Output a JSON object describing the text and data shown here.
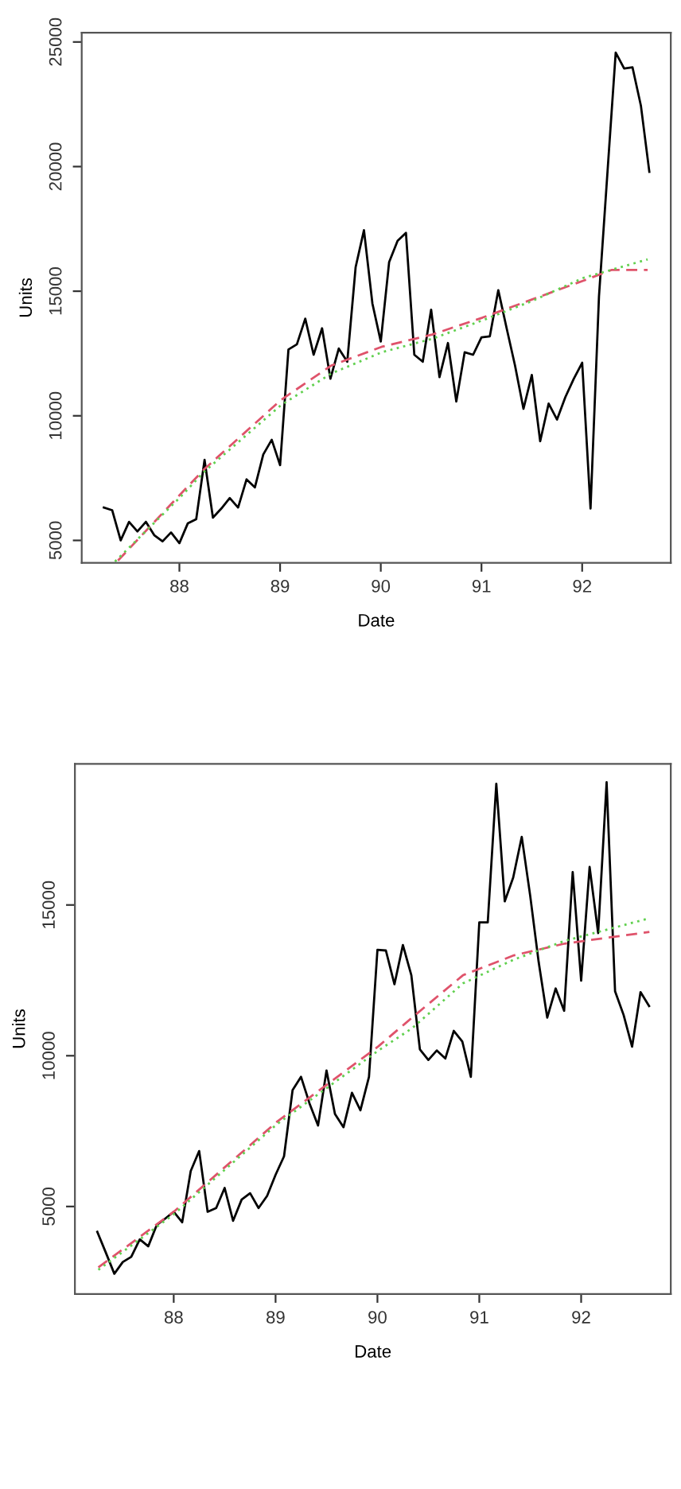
{
  "chart_data": [
    {
      "type": "line",
      "xlabel": "Date",
      "ylabel": "Units",
      "xlim": [
        87.03,
        92.88
      ],
      "ylim": [
        4100,
        25370
      ],
      "xticks": [
        88,
        89,
        90,
        91,
        92
      ],
      "yticks": [
        5000,
        10000,
        15000,
        20000,
        25000
      ],
      "marker": "none",
      "series": [
        {
          "color": "#000000",
          "line_style": "solid",
          "x": [
            87.25,
            87.333,
            87.417,
            87.5,
            87.583,
            87.667,
            87.75,
            87.833,
            87.917,
            88.0,
            88.083,
            88.167,
            88.25,
            88.333,
            88.417,
            88.5,
            88.583,
            88.667,
            88.75,
            88.833,
            88.917,
            89.0,
            89.083,
            89.167,
            89.25,
            89.333,
            89.417,
            89.5,
            89.583,
            89.667,
            89.75,
            89.833,
            89.917,
            90.0,
            90.083,
            90.167,
            90.25,
            90.333,
            90.417,
            90.5,
            90.583,
            90.667,
            90.75,
            90.833,
            90.917,
            91.0,
            91.083,
            91.167,
            91.25,
            91.333,
            91.417,
            91.5,
            91.583,
            91.667,
            91.75,
            91.833,
            91.917,
            92.0,
            92.083,
            92.167,
            92.25,
            92.333,
            92.417,
            92.5,
            92.583,
            92.667
          ],
          "values": [
            6320,
            6210,
            5000,
            5745,
            5360,
            5745,
            5210,
            4960,
            5320,
            4890,
            5680,
            5850,
            8230,
            5915,
            6280,
            6700,
            6320,
            7450,
            7130,
            8450,
            9040,
            8020,
            12660,
            12870,
            13900,
            12450,
            13510,
            11490,
            12700,
            12170,
            15960,
            17450,
            14500,
            12980,
            16170,
            17020,
            17340,
            12450,
            12170,
            14260,
            11550,
            12920,
            10575,
            12550,
            12450,
            13150,
            13190,
            15040,
            13510,
            12020,
            10280,
            11640,
            8980,
            10490,
            9850,
            10750,
            11490,
            12130,
            6280,
            14800,
            19700,
            24575,
            23935,
            23980,
            22450,
            19790
          ]
        },
        {
          "color": "#df536b",
          "line_style": "dashed",
          "x": [
            87.39,
            88.0,
            88.25,
            89.01,
            89.51,
            90.01,
            90.51,
            91.01,
            91.51,
            92.01,
            92.29,
            92.65
          ],
          "values": [
            4190,
            6810,
            7870,
            10640,
            12020,
            12770,
            13260,
            13940,
            14680,
            15420,
            15850,
            15850
          ]
        },
        {
          "color": "#61d04f",
          "line_style": "dotted",
          "x": [
            87.36,
            88.0,
            88.25,
            89.01,
            89.51,
            90.01,
            90.51,
            91.01,
            91.51,
            92.01,
            92.65
          ],
          "values": [
            4150,
            6700,
            7770,
            10430,
            11700,
            12550,
            13090,
            13830,
            14620,
            15530,
            16275
          ]
        }
      ]
    },
    {
      "type": "line",
      "xlabel": "Date",
      "ylabel": "Units",
      "xlim": [
        87.03,
        92.88
      ],
      "ylim": [
        2100,
        19680
      ],
      "xticks": [
        88,
        89,
        90,
        91,
        92
      ],
      "yticks": [
        5000,
        10000,
        15000
      ],
      "marker": "none",
      "series": [
        {
          "color": "#000000",
          "line_style": "solid",
          "x": [
            87.25,
            87.333,
            87.417,
            87.5,
            87.583,
            87.667,
            87.75,
            87.833,
            87.917,
            88.0,
            88.083,
            88.167,
            88.25,
            88.333,
            88.417,
            88.5,
            88.583,
            88.667,
            88.75,
            88.833,
            88.917,
            89.0,
            89.083,
            89.167,
            89.25,
            89.333,
            89.417,
            89.5,
            89.583,
            89.667,
            89.75,
            89.833,
            89.917,
            90.0,
            90.083,
            90.167,
            90.25,
            90.333,
            90.417,
            90.5,
            90.583,
            90.667,
            90.75,
            90.833,
            90.917,
            91.0,
            91.083,
            91.167,
            91.25,
            91.333,
            91.417,
            91.5,
            91.583,
            91.667,
            91.75,
            91.833,
            91.917,
            92.0,
            92.083,
            92.167,
            92.25,
            92.333,
            92.417,
            92.5,
            92.583,
            92.667
          ],
          "values": [
            4160,
            3475,
            2770,
            3160,
            3330,
            3910,
            3680,
            4385,
            4600,
            4825,
            4475,
            6175,
            6840,
            4825,
            4950,
            5615,
            4525,
            5230,
            5440,
            4950,
            5350,
            6050,
            6665,
            8860,
            9300,
            8420,
            7685,
            9510,
            8070,
            7630,
            8770,
            8190,
            9300,
            13510,
            13490,
            12370,
            13670,
            12670,
            10210,
            9860,
            10175,
            9910,
            10825,
            10475,
            9300,
            14420,
            14420,
            19020,
            15120,
            15910,
            17260,
            15300,
            13105,
            11265,
            12230,
            11490,
            16090,
            12490,
            16260,
            14070,
            19070,
            12140,
            11350,
            10300,
            12110,
            11650
          ]
        },
        {
          "color": "#df536b",
          "line_style": "dashed",
          "x": [
            87.26,
            88.0,
            89.01,
            90.01,
            90.34,
            90.84,
            91.34,
            91.84,
            92.67
          ],
          "values": [
            2980,
            4825,
            7800,
            10315,
            11265,
            12670,
            13330,
            13720,
            14105
          ]
        },
        {
          "color": "#61d04f",
          "line_style": "dotted",
          "x": [
            87.26,
            88.0,
            89.01,
            90.01,
            90.34,
            90.84,
            91.34,
            91.84,
            92.67
          ],
          "values": [
            2900,
            4740,
            7720,
            10175,
            10910,
            12400,
            13190,
            13810,
            14560
          ]
        }
      ]
    }
  ]
}
